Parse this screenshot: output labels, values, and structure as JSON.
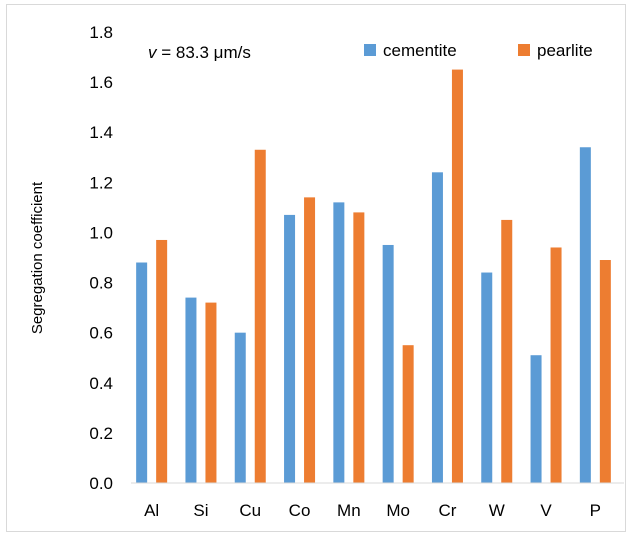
{
  "chart_data": {
    "type": "bar",
    "title": "",
    "annotation": "v = 83.3 μm/s",
    "annotation_var": "v",
    "annotation_rest": " = 83.3 μm/s",
    "xlabel": "",
    "ylabel": "Segregation coefficient",
    "ylim": [
      0,
      1.8
    ],
    "yticks": [
      "0.0",
      "0.2",
      "0.4",
      "0.6",
      "0.8",
      "1.0",
      "1.2",
      "1.4",
      "1.6",
      "1.8"
    ],
    "grid": false,
    "legend_position": "top-right",
    "categories": [
      "Al",
      "Si",
      "Cu",
      "Co",
      "Mn",
      "Mo",
      "Cr",
      "W",
      "V",
      "P"
    ],
    "series": [
      {
        "name": "cementite",
        "color": "#5b9bd5",
        "values": [
          0.88,
          0.74,
          0.6,
          1.07,
          1.12,
          0.95,
          1.24,
          0.84,
          0.51,
          1.34
        ]
      },
      {
        "name": "pearlite",
        "color": "#ed7d31",
        "values": [
          0.97,
          0.72,
          1.33,
          1.14,
          1.08,
          0.55,
          1.65,
          1.05,
          0.94,
          0.89
        ]
      }
    ]
  }
}
